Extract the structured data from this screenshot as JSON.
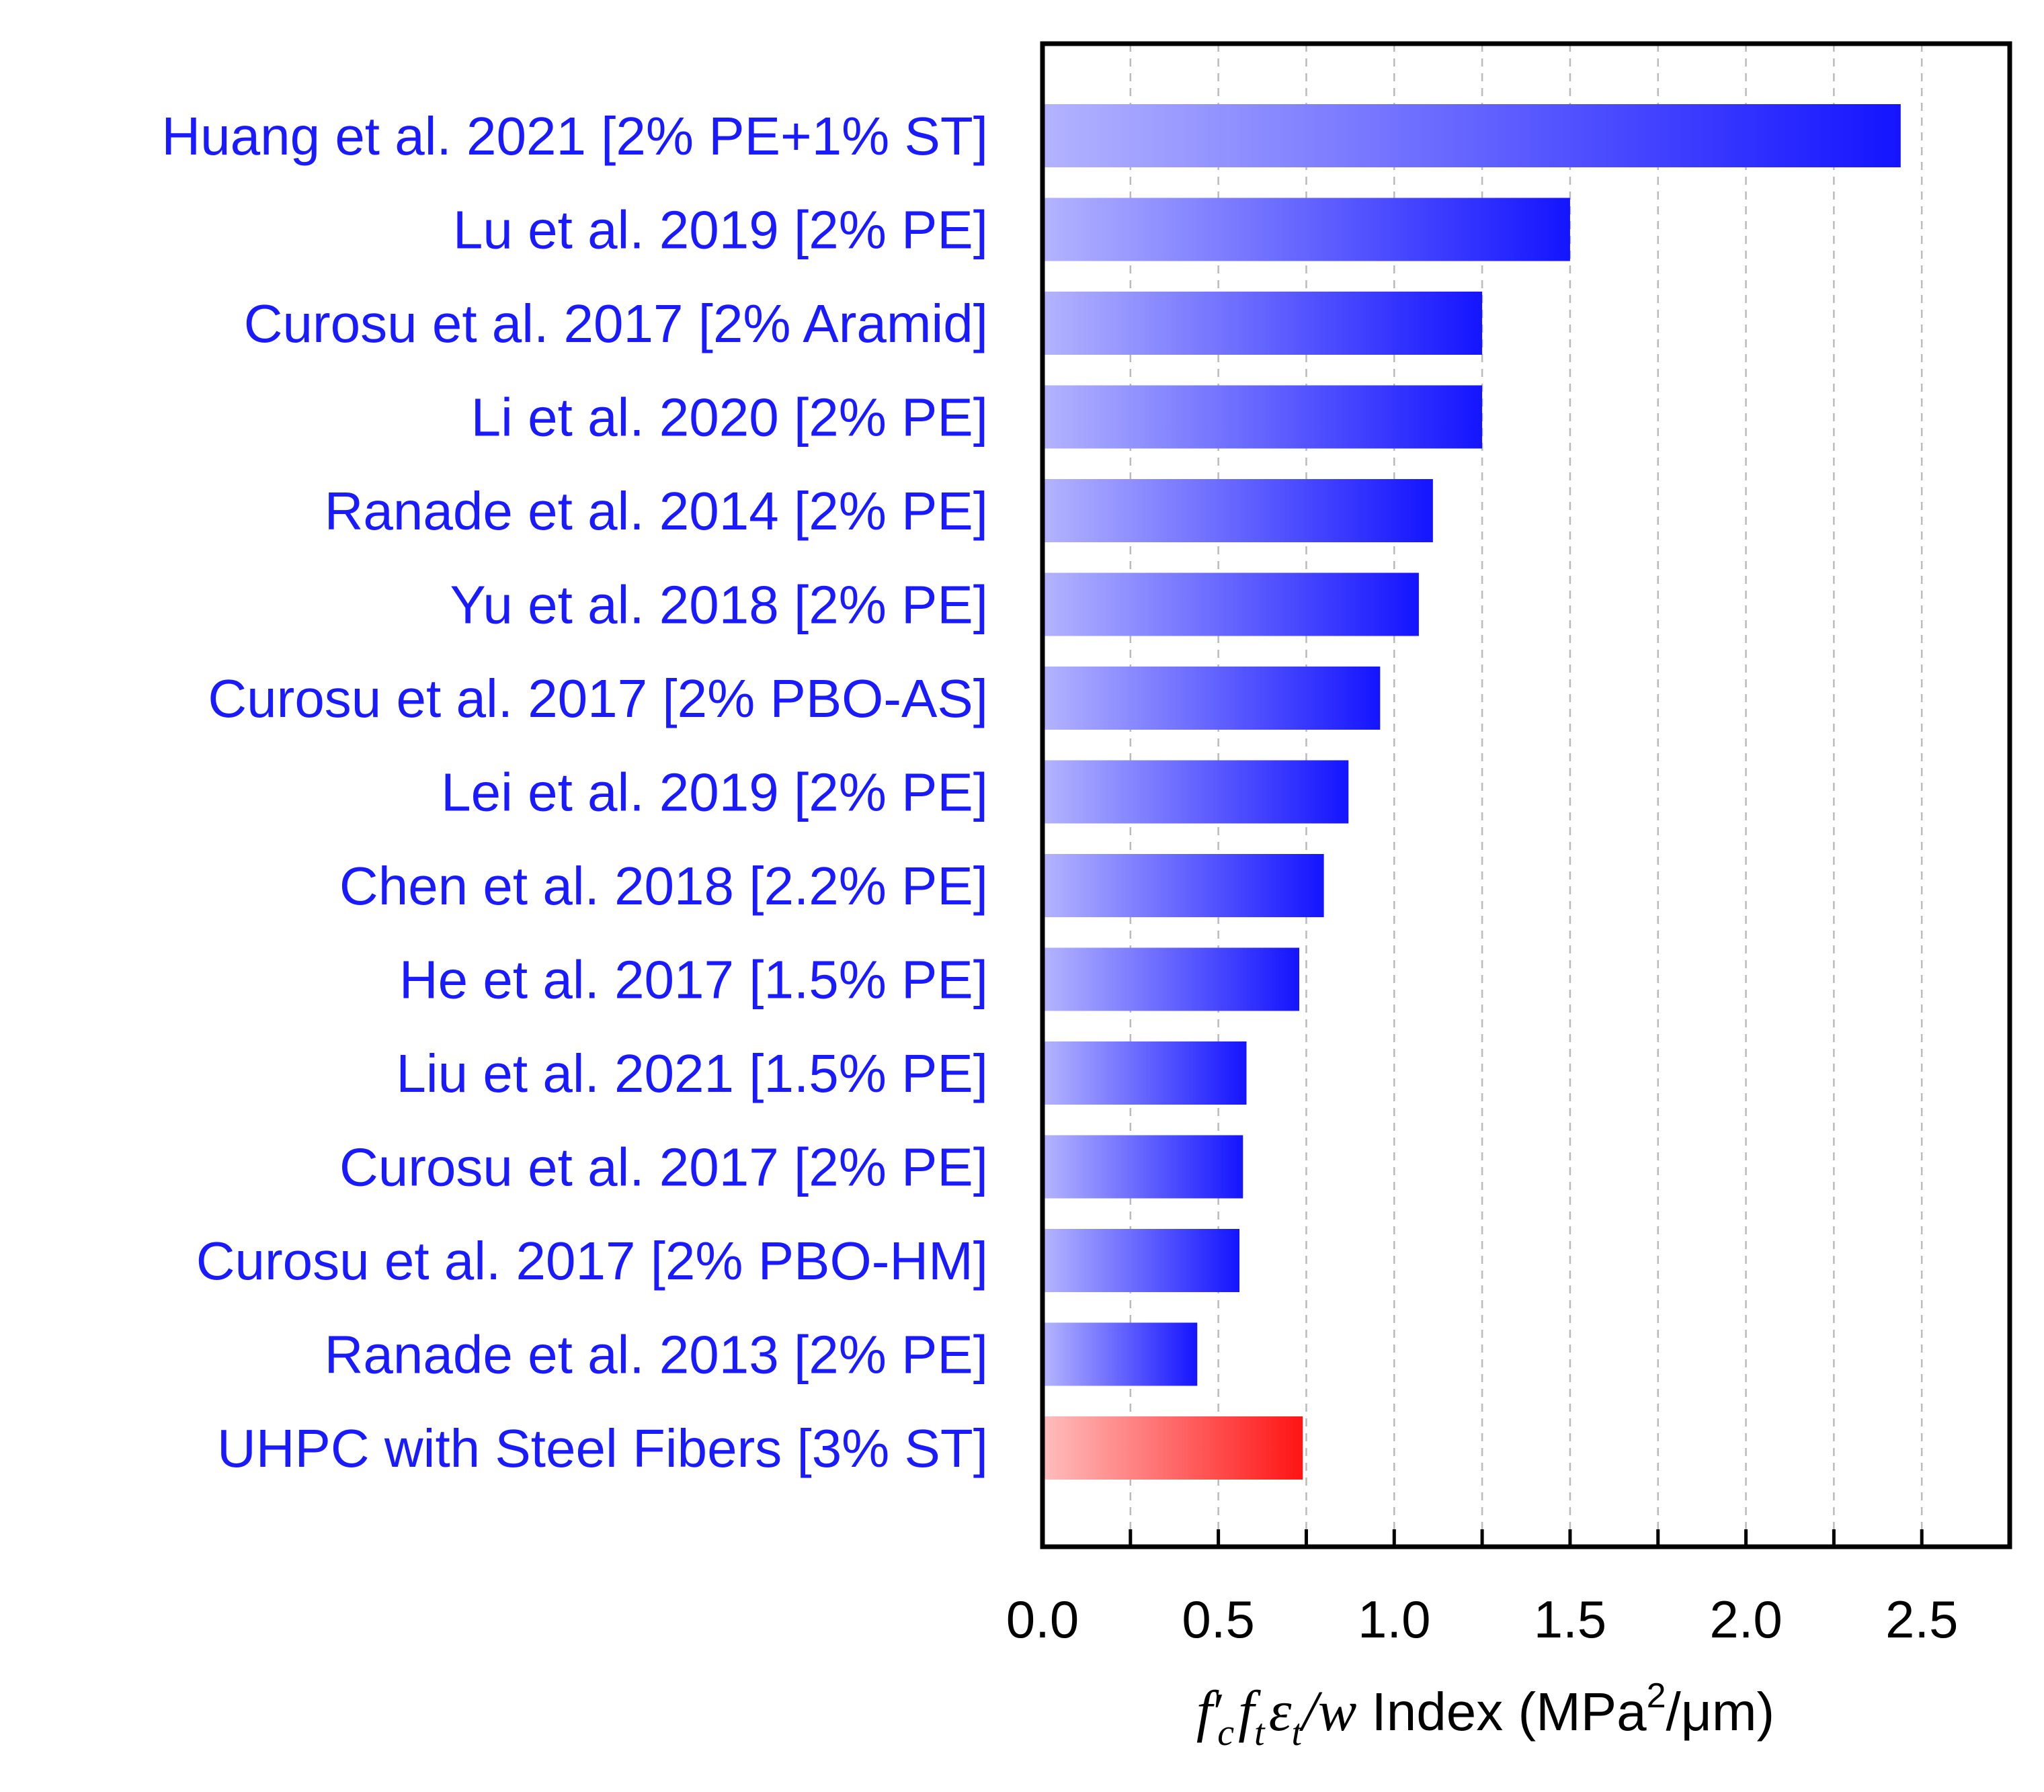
{
  "chart_data": {
    "type": "bar",
    "orientation": "horizontal",
    "categories": [
      "Huang et al. 2021 [2% PE+1% ST]",
      "Lu et al. 2019 [2% PE]",
      "Curosu et al. 2017 [2% Aramid]",
      "Li et al. 2020 [2% PE]",
      "Ranade et al. 2014 [2% PE]",
      "Yu et al. 2018 [2% PE]",
      "Curosu et al. 2017 [2% PBO-AS]",
      "Lei et al. 2019 [2% PE]",
      "Chen et al. 2018 [2.2% PE]",
      "He et al. 2017 [1.5% PE]",
      "Liu et al. 2021 [1.5% PE]",
      "Curosu et al. 2017 [2% PE]",
      "Curosu et al. 2017 [2% PBO-HM]",
      "Ranade et al. 2013 [2% PE]",
      "UHPC with Steel Fibers [3% ST]"
    ],
    "values": [
      2.44,
      1.5,
      1.25,
      1.25,
      1.11,
      1.07,
      0.96,
      0.87,
      0.8,
      0.73,
      0.58,
      0.57,
      0.56,
      0.44,
      0.74
    ],
    "bar_colors": [
      "blue",
      "blue",
      "blue",
      "blue",
      "blue",
      "blue",
      "blue",
      "blue",
      "blue",
      "blue",
      "blue",
      "blue",
      "blue",
      "blue",
      "red"
    ],
    "xlim": [
      0.0,
      2.75
    ],
    "xticks": [
      0.0,
      0.5,
      1.0,
      1.5,
      2.0,
      2.5
    ],
    "xtick_labels": [
      "0.0",
      "0.5",
      "1.0",
      "1.5",
      "2.0",
      "2.5"
    ],
    "minor_xticks": [
      0.25,
      0.75,
      1.25,
      1.75,
      2.25
    ],
    "grid": "vertical dashed",
    "xlabel": {
      "f": "f",
      "prime": "′",
      "sub_c": "c",
      "sub_t": "t",
      "epsilon": "ε",
      "slash_w": "/w",
      "rest": " Index (MPa",
      "sup": "2",
      "tail": "/μm)"
    },
    "title": ""
  },
  "colors": {
    "label_text": "#1a1aff",
    "blue_start": "#b3b3ff",
    "blue_end": "#1414ff",
    "red_start": "#ffbcbc",
    "red_end": "#ff1414",
    "axis": "#000000",
    "grid": "#bbbbbb"
  }
}
